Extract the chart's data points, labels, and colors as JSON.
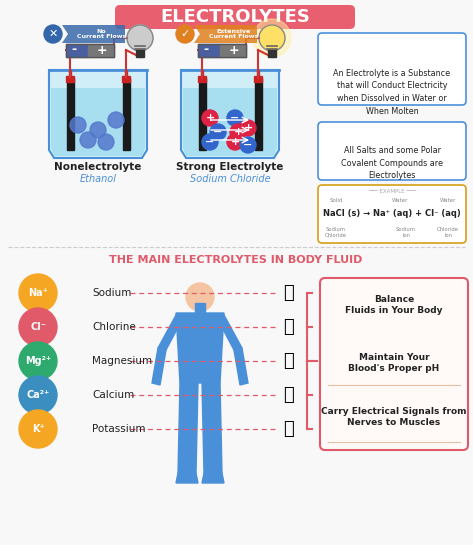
{
  "title": "ELECTROLYTES",
  "title_bg_left": "#e86070",
  "title_bg_right": "#c94050",
  "title_color": "white",
  "bg_color": "#f8f8f8",
  "section2_title": "THE MAIN ELECTROLYTES IN BODY FLUID",
  "section2_title_color": "#e05a6a",
  "electrolytes": [
    {
      "symbol": "Na⁺",
      "name": "Sodium",
      "circle_color": "#f5a623"
    },
    {
      "symbol": "Cl⁻",
      "name": "Chlorine",
      "circle_color": "#e05a6a"
    },
    {
      "symbol": "Mg²⁺",
      "name": "Magnesium",
      "circle_color": "#2eaa6e"
    },
    {
      "symbol": "Ca²⁺",
      "name": "Calcium",
      "circle_color": "#3a8fc0"
    },
    {
      "symbol": "K⁺",
      "name": "Potassium",
      "circle_color": "#f5a623"
    }
  ],
  "benefits": [
    "Balance\nFluids in Your Body",
    "Maintain Your\nBlood's Proper pH",
    "Carry Electrical Signals from\nNerves to Muscles"
  ],
  "benefit_box_color": "#fffaf8",
  "benefit_border_color": "#e05a6a",
  "top_right_box1_lines": [
    "An Electrolyte is a Substance",
    "that will Conduct Electricity",
    "when Dissolved in Water or",
    "When Molten"
  ],
  "top_right_box1_colors": [
    "#333333",
    "#333333",
    "#333333",
    "#333333"
  ],
  "top_right_box2": "All Salts and some Polar\nCovalent Compounds are\nElectrolytes",
  "top_right_box3_title": "EXAMPLE",
  "nacl_line1": "NaCl (s)  →  Na⁺ (aq) + Cl⁻ (aq)",
  "nacl_line2_labels": [
    "Solid",
    "Water",
    "Water"
  ],
  "nacl_line3_labels": [
    "Sodium\nChloride",
    "Sodium\nIon",
    "Chloride\nIon"
  ],
  "nonelectrolyte_label": "Nonelectrolyte",
  "nonelectrolyte_sub": "Ethanol",
  "strong_electrolyte_label": "Strong Electrolyte",
  "strong_electrolyte_sub": "Sodium Chloride",
  "water_color": "#a8dff0",
  "water_color2": "#78c8e8",
  "beaker_outline": "#4a90d9",
  "beaker_bg": "#d0eef8",
  "electrode_color": "#222222",
  "wire_color": "#cc3333",
  "particle_neutral": "#5578cc",
  "particle_pos_color": "#dd2244",
  "particle_neg_color": "#3366cc",
  "bulb_off_color": "#cccccc",
  "bulb_on_color": "#ffe066",
  "bulb_glow_color": "#fff0a0",
  "no_current_color": "#3366aa",
  "extensive_current_color": "#e08020",
  "body_color": "#4a90d9",
  "body_head_color": "#f5c5a3",
  "divider_color": "#cccccc",
  "box_border_blue": "#4a90d9",
  "box_border_gold": "#d4a017",
  "label_nonelec_color": "#333333",
  "label_elec_color": "#4a90d9"
}
